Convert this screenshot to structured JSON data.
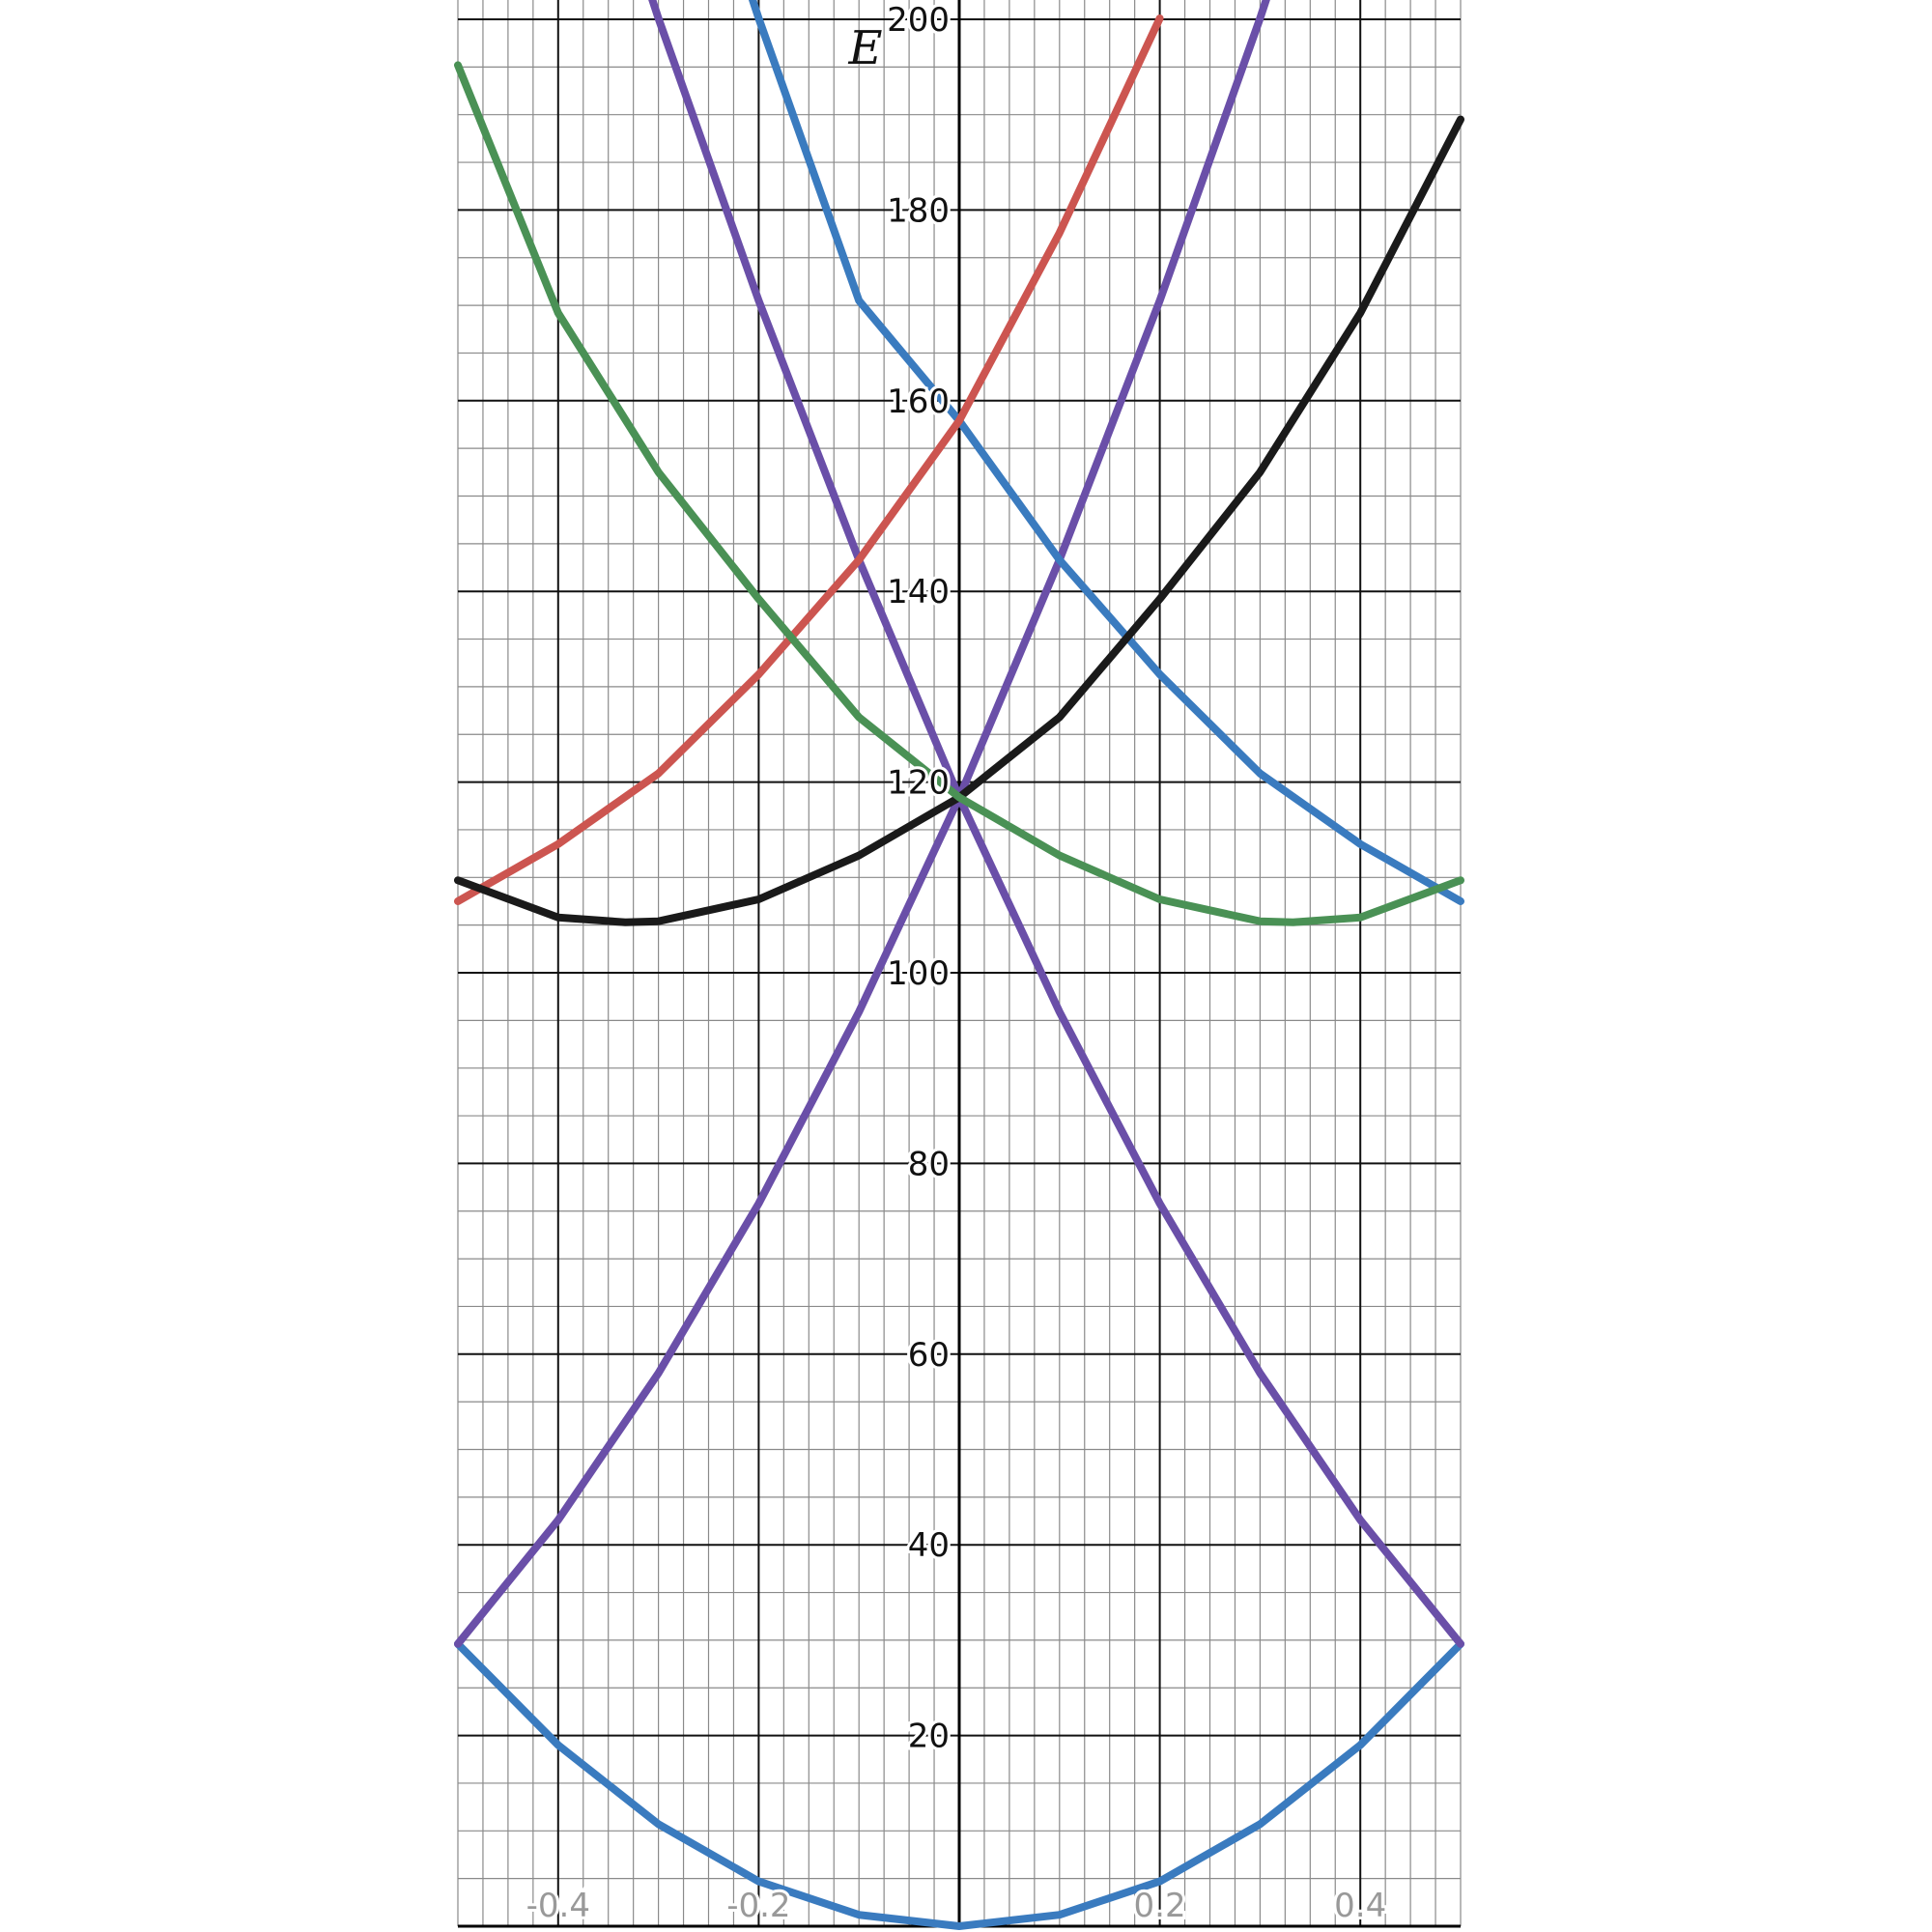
{
  "chart_data": {
    "type": "line",
    "title": "",
    "xlabel": "",
    "ylabel": "E",
    "xlim": [
      -0.5,
      0.5
    ],
    "ylim": [
      0,
      200
    ],
    "x_ticks": [
      "-0.4",
      "-0.2",
      "0.2",
      "0.4"
    ],
    "y_ticks": [
      "20",
      "40",
      "60",
      "80",
      "100",
      "120",
      "140",
      "160",
      "180",
      "200"
    ],
    "grid": true,
    "legend": "none",
    "series": [
      {
        "color": "#3a7bbf",
        "x": [
          -0.5,
          -0.4,
          -0.3,
          -0.2,
          -0.1,
          0.0,
          0.1,
          0.2,
          0.3,
          0.4,
          0.5
        ],
        "y": [
          29.6,
          19.0,
          10.7,
          4.7,
          1.2,
          0.0,
          1.2,
          4.7,
          10.7,
          19.0,
          29.6
        ]
      },
      {
        "color": "#6a4fa8",
        "x": [
          -0.5,
          -0.4,
          -0.3,
          -0.2,
          -0.1,
          0.0,
          0.1,
          0.2,
          0.3,
          0.4
        ],
        "y": [
          29.6,
          42.6,
          58.0,
          75.8,
          95.9,
          118.4,
          143.3,
          170.5,
          200.1,
          232.1
        ]
      },
      {
        "color": "#6a4fa8",
        "x": [
          -0.4,
          -0.3,
          -0.2,
          -0.1,
          0.0,
          0.1,
          0.2,
          0.3,
          0.4,
          0.5
        ],
        "y": [
          232.1,
          200.1,
          170.5,
          143.3,
          118.4,
          95.9,
          75.8,
          58.0,
          42.6,
          29.6
        ]
      },
      {
        "color": "#3a7bbf",
        "x": [
          -0.3,
          -0.2,
          -0.1,
          0.0,
          0.1,
          0.2,
          0.3,
          0.4,
          0.5
        ],
        "y": [
          232.1,
          200.1,
          170.5,
          157.9,
          143.3,
          131.3,
          120.9,
          113.5,
          107.5
        ]
      },
      {
        "color": "#cc5550",
        "x": [
          -0.5,
          -0.4,
          -0.3,
          -0.2,
          -0.1,
          0.0,
          0.1,
          0.2
        ],
        "y": [
          107.5,
          113.5,
          120.9,
          131.3,
          143.3,
          157.9,
          177.6,
          200.1
        ]
      },
      {
        "color": "#1a1a1a",
        "x": [
          -0.5,
          -0.4,
          -0.333,
          -0.3,
          -0.2,
          -0.1,
          0.0,
          0.1,
          0.2,
          0.3,
          0.4,
          0.5
        ],
        "y": [
          109.7,
          105.8,
          105.3,
          105.4,
          107.7,
          112.3,
          118.4,
          126.8,
          139.2,
          152.5,
          169.2,
          189.5
        ]
      },
      {
        "color": "#4a9155",
        "x": [
          -0.5,
          -0.4,
          -0.3,
          -0.2,
          -0.1,
          0.0,
          0.1,
          0.2,
          0.3,
          0.333,
          0.4,
          0.5
        ],
        "y": [
          195.2,
          169.2,
          152.5,
          139.2,
          126.8,
          118.4,
          112.3,
          107.7,
          105.4,
          105.3,
          105.8,
          109.7
        ]
      }
    ]
  }
}
